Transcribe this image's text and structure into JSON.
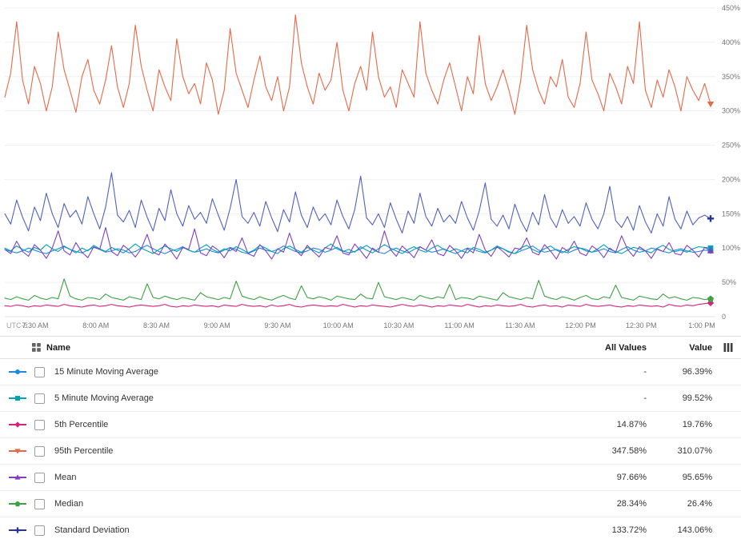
{
  "chart_data": {
    "type": "line",
    "title": "",
    "xlabel": "",
    "ylabel": "",
    "ylim": [
      0,
      450
    ],
    "ytick_step": 50,
    "ytick_suffix": "%",
    "grid": true,
    "legend_position": "bottom-table",
    "xticks": [
      "UTC-5",
      "7:30 AM",
      "8:00 AM",
      "8:30 AM",
      "9:00 AM",
      "9:30 AM",
      "10:00 AM",
      "10:30 AM",
      "11:00 AM",
      "11:30 AM",
      "12:00 PM",
      "12:30 PM",
      "1:00 PM"
    ],
    "series": [
      {
        "name": "15 Minute Moving Average",
        "color": "#1e88e5",
        "marker": "circle",
        "values": [
          98,
          95,
          93,
          96,
          100,
          97,
          94,
          92,
          96,
          99,
          103,
          98,
          95,
          93,
          97,
          101,
          98,
          94,
          96,
          99,
          97,
          93,
          95,
          100,
          104,
          99,
          95,
          92,
          96,
          98,
          102,
          97,
          94,
          96,
          99,
          95,
          93,
          97,
          101,
          98,
          94,
          92,
          96,
          100,
          97,
          95,
          98,
          103,
          99,
          95,
          93,
          96,
          100,
          98,
          94,
          97,
          101,
          96,
          93,
          95,
          99,
          104,
          98,
          94,
          92,
          97,
          100,
          96,
          93,
          98,
          102,
          97,
          94,
          96,
          99,
          95,
          92,
          96,
          100,
          98,
          95,
          93,
          97,
          101,
          99,
          94,
          92,
          96,
          99,
          103,
          97,
          94,
          96,
          98,
          95,
          93,
          97,
          100,
          98,
          94,
          96,
          99,
          95,
          93,
          98,
          102,
          97,
          94,
          96,
          100,
          98,
          95,
          93,
          97,
          99,
          96,
          94,
          95,
          97,
          96
        ]
      },
      {
        "name": "5 Minute Moving Average",
        "color": "#00a2b3",
        "marker": "square",
        "values": [
          100,
          96,
          103,
          98,
          94,
          101,
          97,
          105,
          99,
          95,
          102,
          98,
          93,
          100,
          96,
          104,
          99,
          95,
          101,
          97,
          93,
          99,
          106,
          100,
          96,
          92,
          98,
          103,
          99,
          95,
          101,
          97,
          94,
          100,
          105,
          98,
          94,
          99,
          96,
          102,
          98,
          93,
          97,
          104,
          100,
          95,
          92,
          99,
          103,
          98,
          94,
          101,
          97,
          93,
          100,
          106,
          99,
          95,
          98,
          94,
          102,
          97,
          93,
          99,
          105,
          100,
          96,
          92,
          98,
          102,
          97,
          94,
          100,
          104,
          98,
          95,
          99,
          96,
          93,
          101,
          98,
          94,
          97,
          103,
          99,
          95,
          92,
          100,
          104,
          98,
          94,
          99,
          103,
          97,
          93,
          98,
          102,
          100,
          96,
          94,
          99,
          105,
          98,
          95,
          92,
          97,
          101,
          99,
          96,
          93,
          100,
          104,
          98,
          95,
          97,
          94,
          99,
          102,
          101,
          100
        ]
      },
      {
        "name": "5th Percentile",
        "color": "#d6217e",
        "marker": "diamond",
        "values": [
          16,
          15,
          17,
          16,
          14,
          16,
          15,
          17,
          16,
          15,
          18,
          16,
          15,
          14,
          16,
          17,
          15,
          16,
          18,
          16,
          15,
          14,
          16,
          17,
          16,
          15,
          16,
          18,
          15,
          14,
          16,
          15,
          17,
          16,
          15,
          16,
          14,
          17,
          16,
          15,
          18,
          16,
          15,
          16,
          14,
          17,
          15,
          16,
          18,
          15,
          14,
          16,
          17,
          16,
          15,
          16,
          15,
          18,
          16,
          14,
          16,
          15,
          17,
          16,
          15,
          14,
          16,
          18,
          16,
          15,
          17,
          16,
          14,
          16,
          15,
          17,
          16,
          15,
          18,
          16,
          14,
          16,
          15,
          17,
          16,
          15,
          16,
          18,
          15,
          14,
          16,
          17,
          15,
          16,
          14,
          17,
          16,
          15,
          18,
          16,
          15,
          16,
          17,
          15,
          14,
          16,
          15,
          17,
          16,
          15,
          16,
          14,
          18,
          16,
          15,
          17,
          16,
          18,
          19,
          20
        ]
      },
      {
        "name": "95th Percentile",
        "color": "#e8684a",
        "marker": "triangle-down",
        "values": [
          320,
          355,
          430,
          345,
          310,
          365,
          340,
          300,
          335,
          415,
          360,
          330,
          298,
          350,
          375,
          330,
          310,
          345,
          395,
          335,
          305,
          340,
          425,
          365,
          330,
          300,
          360,
          335,
          315,
          405,
          350,
          325,
          340,
          310,
          370,
          345,
          295,
          330,
          420,
          355,
          330,
          305,
          345,
          380,
          335,
          315,
          350,
          300,
          335,
          440,
          370,
          335,
          310,
          355,
          330,
          345,
          400,
          330,
          300,
          340,
          365,
          330,
          415,
          350,
          320,
          335,
          305,
          360,
          340,
          320,
          430,
          355,
          330,
          310,
          345,
          370,
          335,
          300,
          350,
          325,
          410,
          340,
          315,
          335,
          360,
          330,
          295,
          345,
          425,
          360,
          330,
          310,
          350,
          335,
          375,
          320,
          305,
          340,
          415,
          345,
          325,
          300,
          355,
          335,
          310,
          365,
          340,
          430,
          330,
          305,
          345,
          320,
          360,
          335,
          300,
          350,
          330,
          315,
          340,
          310
        ]
      },
      {
        "name": "Mean",
        "color": "#8040bf",
        "marker": "triangle-up",
        "values": [
          98,
          92,
          110,
          95,
          88,
          105,
          97,
          85,
          100,
          125,
          96,
          90,
          108,
          94,
          86,
          102,
          98,
          130,
          95,
          89,
          104,
          97,
          87,
          99,
          120,
          94,
          90,
          106,
          96,
          84,
          101,
          98,
          128,
          93,
          89,
          103,
          97,
          86,
          100,
          95,
          115,
          92,
          88,
          105,
          96,
          84,
          99,
          94,
          122,
          97,
          89,
          104,
          95,
          87,
          101,
          98,
          118,
          93,
          90,
          106,
          96,
          85,
          100,
          94,
          125,
          98,
          88,
          103,
          95,
          86,
          102,
          97,
          112,
          92,
          89,
          104,
          96,
          85,
          99,
          93,
          120,
          97,
          88,
          102,
          95,
          87,
          100,
          98,
          115,
          94,
          90,
          105,
          96,
          84,
          101,
          95,
          110,
          93,
          89,
          103,
          97,
          86,
          100,
          94,
          118,
          98,
          88,
          102,
          96,
          85,
          99,
          95,
          108,
          92,
          90,
          104,
          97,
          87,
          101,
          96
        ]
      },
      {
        "name": "Median",
        "color": "#3fa045",
        "marker": "pentagon",
        "values": [
          27,
          25,
          29,
          26,
          24,
          31,
          27,
          25,
          28,
          26,
          55,
          30,
          26,
          24,
          28,
          27,
          25,
          33,
          28,
          26,
          24,
          29,
          27,
          25,
          48,
          28,
          26,
          30,
          27,
          25,
          28,
          26,
          24,
          35,
          29,
          27,
          25,
          28,
          26,
          52,
          30,
          27,
          25,
          29,
          26,
          24,
          28,
          31,
          27,
          25,
          45,
          28,
          26,
          29,
          27,
          24,
          30,
          28,
          26,
          25,
          33,
          27,
          26,
          50,
          29,
          27,
          25,
          28,
          26,
          24,
          31,
          28,
          26,
          29,
          27,
          47,
          25,
          28,
          27,
          25,
          30,
          28,
          26,
          24,
          35,
          29,
          27,
          25,
          28,
          26,
          53,
          30,
          27,
          25,
          29,
          27,
          24,
          28,
          31,
          26,
          25,
          29,
          27,
          46,
          28,
          26,
          24,
          30,
          28,
          26,
          25,
          33,
          27,
          29,
          26,
          24,
          28,
          27,
          25,
          26
        ]
      },
      {
        "name": "Standard Deviation",
        "color": "#5161bd",
        "marker": "plus",
        "marker_color": "#283593",
        "values": [
          150,
          135,
          170,
          145,
          125,
          160,
          140,
          180,
          150,
          130,
          165,
          145,
          155,
          135,
          175,
          150,
          128,
          160,
          210,
          148,
          138,
          155,
          130,
          170,
          145,
          125,
          158,
          140,
          185,
          150,
          132,
          162,
          142,
          152,
          136,
          172,
          148,
          126,
          158,
          200,
          146,
          136,
          152,
          132,
          168,
          144,
          124,
          156,
          138,
          182,
          148,
          130,
          160,
          140,
          150,
          134,
          170,
          146,
          128,
          156,
          205,
          144,
          134,
          150,
          130,
          166,
          142,
          122,
          154,
          136,
          180,
          146,
          132,
          158,
          138,
          148,
          136,
          168,
          144,
          126,
          154,
          195,
          142,
          132,
          148,
          128,
          164,
          140,
          124,
          152,
          134,
          178,
          144,
          130,
          156,
          136,
          146,
          132,
          166,
          142,
          128,
          150,
          190,
          140,
          130,
          146,
          126,
          162,
          138,
          122,
          150,
          132,
          175,
          142,
          128,
          154,
          134,
          144,
          148,
          143
        ]
      }
    ]
  },
  "legend": {
    "header": {
      "name": "Name",
      "all_values": "All Values",
      "value": "Value"
    },
    "rows": [
      {
        "name": "15 Minute Moving Average",
        "all_values": "-",
        "value": "96.39%",
        "color": "#1e88e5",
        "marker": "circle"
      },
      {
        "name": "5 Minute Moving Average",
        "all_values": "-",
        "value": "99.52%",
        "color": "#00a2b3",
        "marker": "square"
      },
      {
        "name": "5th Percentile",
        "all_values": "14.87%",
        "value": "19.76%",
        "color": "#d6217e",
        "marker": "diamond"
      },
      {
        "name": "95th Percentile",
        "all_values": "347.58%",
        "value": "310.07%",
        "color": "#e8684a",
        "marker": "triangle-down"
      },
      {
        "name": "Mean",
        "all_values": "97.66%",
        "value": "95.65%",
        "color": "#8040bf",
        "marker": "triangle-up"
      },
      {
        "name": "Median",
        "all_values": "28.34%",
        "value": "26.4%",
        "color": "#3fa045",
        "marker": "pentagon"
      },
      {
        "name": "Standard Deviation",
        "all_values": "133.72%",
        "value": "143.06%",
        "color": "#283593",
        "marker": "plus"
      }
    ],
    "icons": {
      "grid": "grid-icon",
      "columns": "columns-icon"
    }
  }
}
